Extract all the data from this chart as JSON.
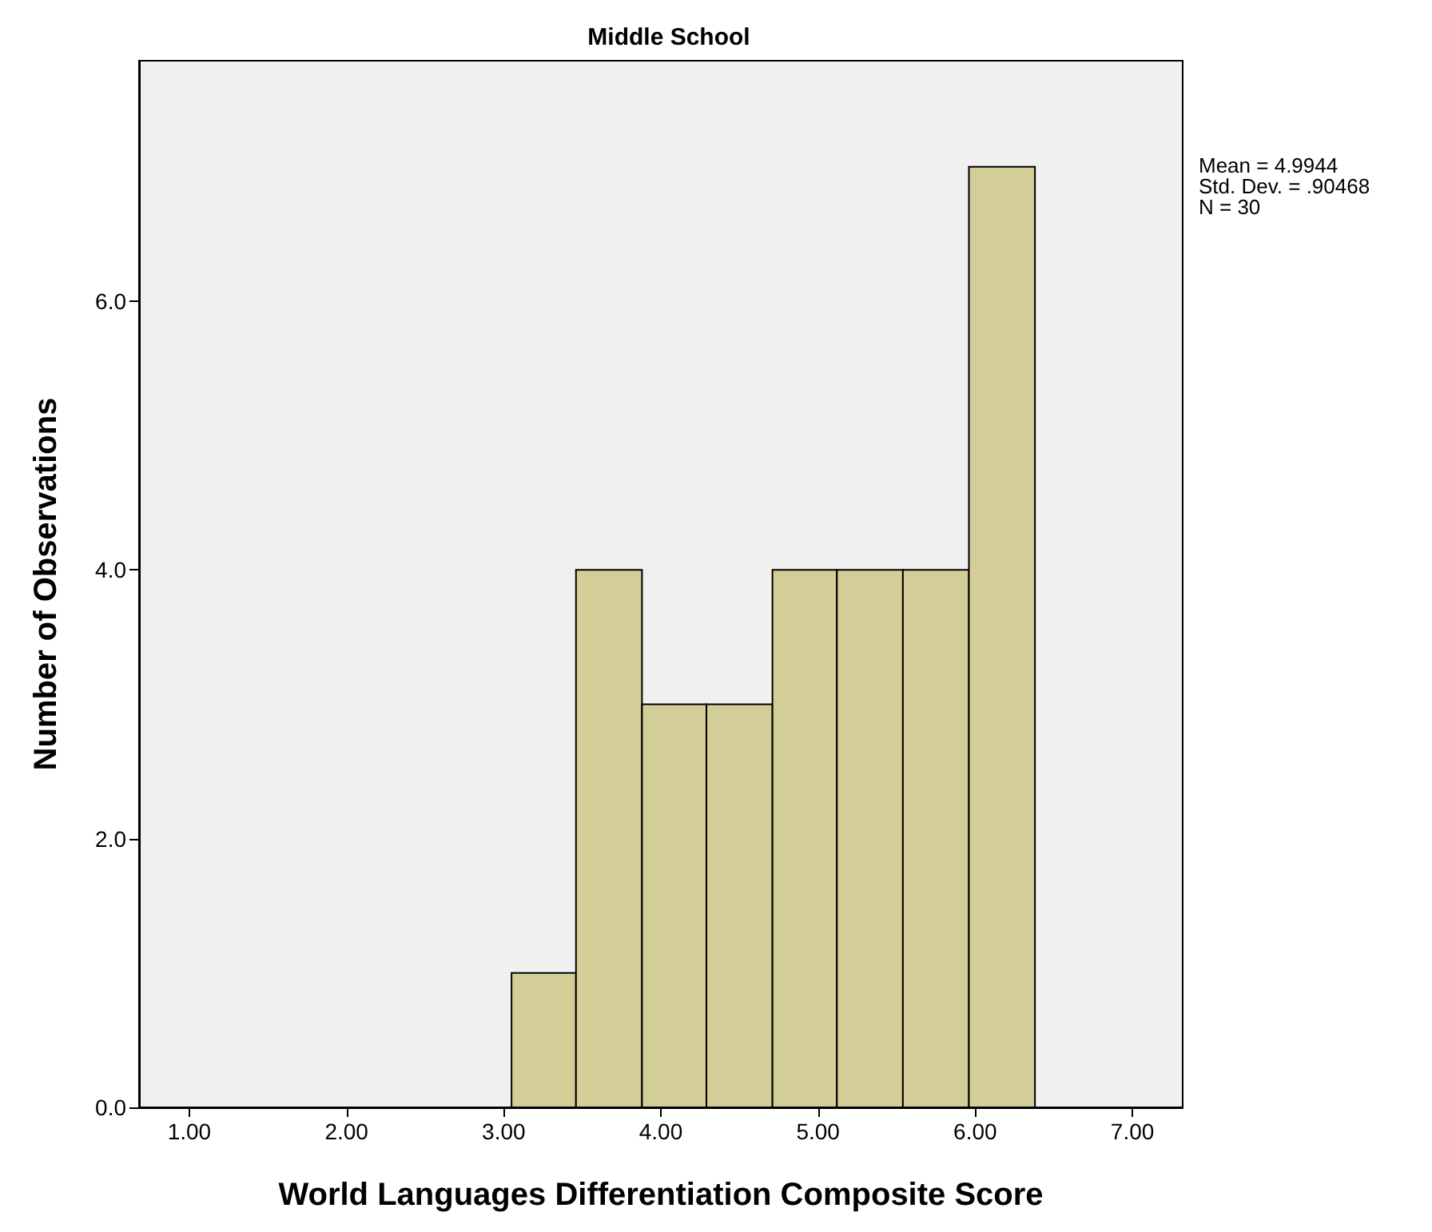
{
  "chart_data": {
    "type": "histogram",
    "title": "Middle School",
    "xlabel": "World Languages Differentiation Composite Score",
    "ylabel": "Number of Observations",
    "annotations": [
      "Mean = 4.9944",
      "Std. Dev. = .90468",
      "N = 30"
    ],
    "bins": [
      3.05,
      3.46,
      3.88,
      4.29,
      4.71,
      5.12,
      5.54,
      5.96,
      6.38
    ],
    "values": [
      1,
      4,
      3,
      3,
      4,
      4,
      4,
      7
    ],
    "color": "#d3ce98",
    "xlim": [
      0.68,
      7.32
    ],
    "xticks": [
      {
        "value": 1,
        "label": "1.00"
      },
      {
        "value": 2,
        "label": "2.00"
      },
      {
        "value": 3,
        "label": "3.00"
      },
      {
        "value": 4,
        "label": "4.00"
      },
      {
        "value": 5,
        "label": "5.00"
      },
      {
        "value": 6,
        "label": "6.00"
      },
      {
        "value": 7,
        "label": "7.00"
      }
    ],
    "ylim": [
      0,
      7.79
    ],
    "yticks": [
      {
        "value": 0,
        "label": "0.0"
      },
      {
        "value": 2,
        "label": "2.0"
      },
      {
        "value": 4,
        "label": "4.0"
      },
      {
        "value": 6,
        "label": "6.0"
      }
    ]
  }
}
